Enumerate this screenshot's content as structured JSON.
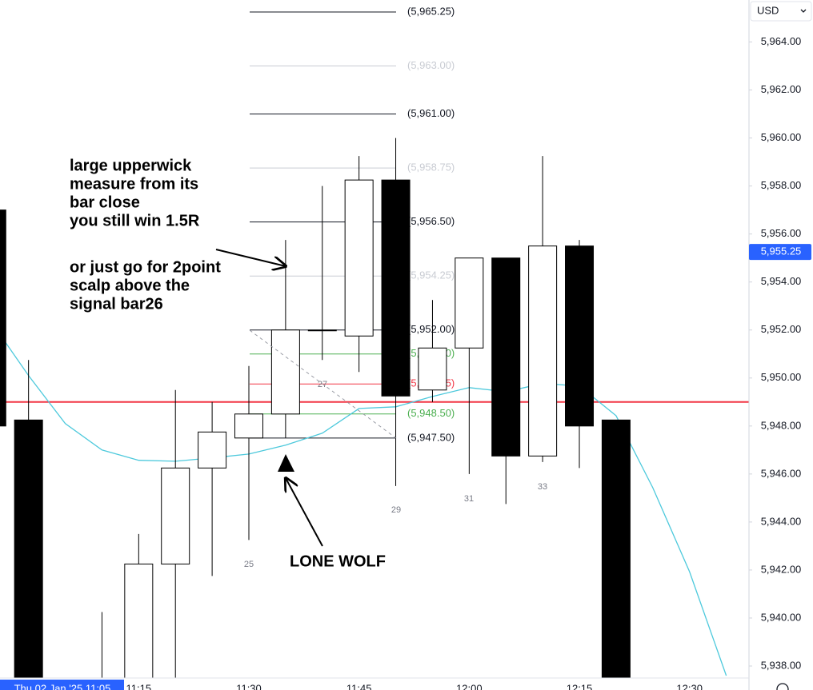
{
  "chart_data": {
    "type": "candlestick",
    "currency": "USD",
    "crosshair_label": "Thu 02 Jan '25  11:05",
    "categories": [
      null,
      null,
      null,
      null,
      "11:15",
      null,
      null,
      "11:30",
      null,
      null,
      "11:45",
      null,
      null,
      "12:00",
      null,
      null,
      "12:15",
      null,
      null,
      "12:30",
      null
    ],
    "open": [
      5957.0,
      5948.25,
      null,
      5936.5,
      5936.75,
      5942.25,
      5946.25,
      5947.5,
      5948.5,
      5952.0,
      5951.75,
      5958.25,
      5949.5,
      5951.25,
      5955.0,
      5946.75,
      5955.5,
      5948.25,
      null,
      null,
      null
    ],
    "high": [
      5957.0,
      5950.75,
      null,
      5940.25,
      5943.5,
      5949.5,
      5949.0,
      5950.5,
      5955.75,
      5958.0,
      5959.25,
      5960.0,
      5953.25,
      5955.0,
      5955.0,
      5959.25,
      5955.75,
      5948.25,
      null,
      null,
      null
    ],
    "low": [
      5948.0,
      5936.5,
      null,
      5936.0,
      5936.5,
      5936.75,
      5941.75,
      5943.25,
      5947.5,
      5950.75,
      5950.25,
      5945.5,
      5949.0,
      5946.0,
      5944.75,
      5946.5,
      5946.25,
      5936.5,
      null,
      null,
      null
    ],
    "close": [
      5948.0,
      5937.0,
      null,
      5937.0,
      5942.25,
      5946.25,
      5947.75,
      5948.5,
      5952.0,
      5952.0,
      5958.25,
      5949.25,
      5951.25,
      5955.0,
      5946.75,
      5955.5,
      5948.0,
      5937.0,
      null,
      null,
      null
    ],
    "up_color": "#ffffff",
    "down_color": "#000000",
    "border_color": "#000000",
    "ema": {
      "color": "#4dc9dc",
      "values": [
        5952.3,
        5950.1,
        5948.1,
        5947.0,
        5946.57,
        5946.53,
        5946.67,
        5946.83,
        5947.2,
        5947.7,
        5948.73,
        5948.8,
        5949.23,
        5949.6,
        5949.43,
        5949.77,
        5949.67,
        5948.43,
        5945.43,
        5941.93,
        5937.6
      ]
    },
    "price_line": {
      "value": 5949.0,
      "color": "#f23645"
    },
    "last_price": {
      "value": 5955.25,
      "label": "5,955.25",
      "color": "#2962ff"
    },
    "levels": [
      {
        "value": 5965.25,
        "label": "(5,965.25)",
        "color": "#131722"
      },
      {
        "value": 5963.0,
        "label": "(5,963.00)",
        "color": "#c9ccd3"
      },
      {
        "value": 5961.0,
        "label": "(5,961.00)",
        "color": "#131722"
      },
      {
        "value": 5958.75,
        "label": "(5,958.75)",
        "color": "#c9ccd3"
      },
      {
        "value": 5956.5,
        "label": "(5,956.50)",
        "color": "#131722"
      },
      {
        "value": 5954.25,
        "label": "(5,954.25)",
        "color": "#c9ccd3"
      },
      {
        "value": 5952.0,
        "label": "(5,952.00)",
        "color": "#131722"
      },
      {
        "value": 5951.0,
        "label": "(5,951.00)",
        "color": "#4caf50"
      },
      {
        "value": 5949.75,
        "label": "(5,949.75)",
        "color": "#f23645"
      },
      {
        "value": 5948.5,
        "label": "(5,948.50)",
        "color": "#4caf50"
      },
      {
        "value": 5947.5,
        "label": "(5,947.50)",
        "color": "#131722"
      }
    ],
    "bar_labels": [
      "25",
      "27",
      "29",
      "31",
      "33"
    ],
    "annotations": [
      [
        "large upperwick",
        "measure from its",
        "bar close",
        "you still win 1.5R"
      ],
      [
        "or just go for 2point",
        "scalp above the",
        "signal bar26"
      ],
      [
        "LONE WOLF"
      ]
    ],
    "ylim": [
      5937.5,
      5965.75
    ],
    "yticks": [
      {
        "value": 5964,
        "label": "5,964.00"
      },
      {
        "value": 5962,
        "label": "5,962.00"
      },
      {
        "value": 5960,
        "label": "5,960.00"
      },
      {
        "value": 5958,
        "label": "5,958.00"
      },
      {
        "value": 5956,
        "label": "5,956.00"
      },
      {
        "value": 5954,
        "label": "5,954.00"
      },
      {
        "value": 5952,
        "label": "5,952.00"
      },
      {
        "value": 5950,
        "label": "5,950.00"
      },
      {
        "value": 5948,
        "label": "5,948.00"
      },
      {
        "value": 5946,
        "label": "5,946.00"
      },
      {
        "value": 5944,
        "label": "5,944.00"
      },
      {
        "value": 5942,
        "label": "5,942.00"
      },
      {
        "value": 5940,
        "label": "5,940.00"
      },
      {
        "value": 5938,
        "label": "5,938.00"
      }
    ]
  }
}
